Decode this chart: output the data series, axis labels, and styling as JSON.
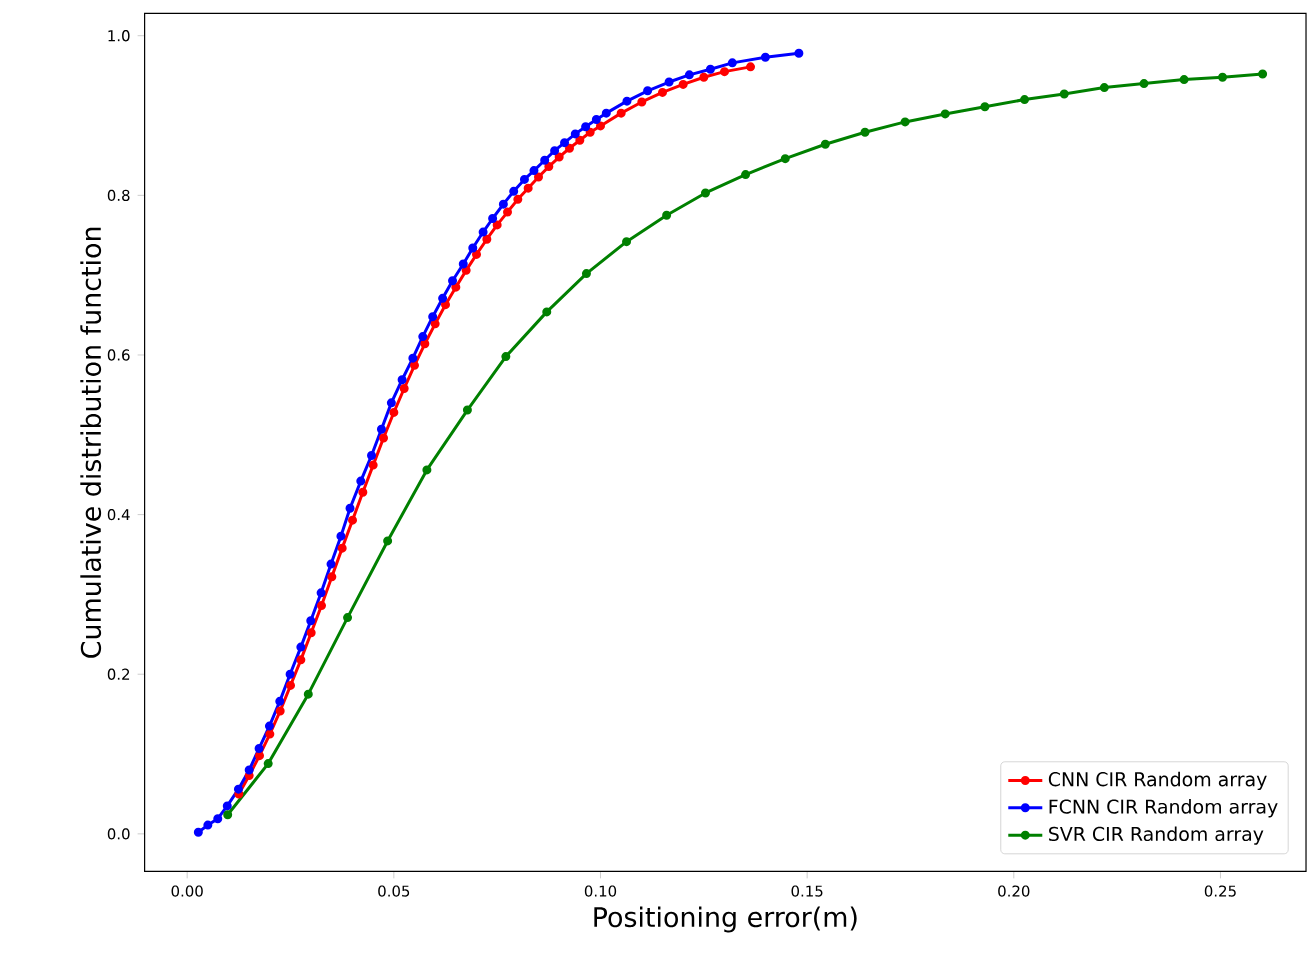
{
  "chart_data": {
    "type": "line",
    "xlabel": "Positioning error(m)",
    "ylabel": "Cumulative distribution function",
    "xlim": [
      -0.0103,
      0.2707
    ],
    "ylim": [
      -0.047,
      1.028
    ],
    "xticks": [
      {
        "value": 0,
        "label": "0.00"
      },
      {
        "value": 0.05,
        "label": "0.05"
      },
      {
        "value": 0.1,
        "label": "0.10"
      },
      {
        "value": 0.15,
        "label": "0.15"
      },
      {
        "value": 0.2,
        "label": "0.20"
      },
      {
        "value": 0.25,
        "label": "0.25"
      }
    ],
    "yticks": [
      {
        "value": 0,
        "label": "0.0"
      },
      {
        "value": 0.2,
        "label": "0.2"
      },
      {
        "value": 0.4,
        "label": "0.4"
      },
      {
        "value": 0.6,
        "label": "0.6"
      },
      {
        "value": 0.8,
        "label": "0.8"
      },
      {
        "value": 1,
        "label": "1.0"
      }
    ],
    "legend": "bottom right",
    "marker": "circle",
    "line_style": "solid",
    "grid": false,
    "series": [
      {
        "name": "CNN CIR Random array",
        "color": "#ff0000",
        "x": [
          0.0125,
          0.015,
          0.0175,
          0.02,
          0.0225,
          0.025,
          0.0275,
          0.03,
          0.0325,
          0.035,
          0.0375,
          0.04,
          0.0425,
          0.045,
          0.0475,
          0.05,
          0.0525,
          0.055,
          0.0575,
          0.06,
          0.0625,
          0.065,
          0.0675,
          0.07,
          0.0725,
          0.075,
          0.0775,
          0.08,
          0.0825,
          0.085,
          0.0875,
          0.09,
          0.0925,
          0.095,
          0.0975,
          0.1,
          0.105,
          0.11,
          0.115,
          0.12,
          0.125,
          0.13,
          0.1363
        ],
        "values": [
          0.05,
          0.073,
          0.098,
          0.125,
          0.154,
          0.186,
          0.218,
          0.252,
          0.286,
          0.322,
          0.358,
          0.393,
          0.428,
          0.462,
          0.496,
          0.528,
          0.558,
          0.587,
          0.614,
          0.639,
          0.663,
          0.685,
          0.706,
          0.726,
          0.745,
          0.763,
          0.779,
          0.795,
          0.809,
          0.823,
          0.836,
          0.848,
          0.859,
          0.869,
          0.879,
          0.887,
          0.903,
          0.917,
          0.929,
          0.939,
          0.948,
          0.955,
          0.961
        ]
      },
      {
        "name": "FCNN CIR Random array",
        "color": "#0000ff",
        "x": [
          0.0027,
          0.005,
          0.0074,
          0.0097,
          0.0124,
          0.015,
          0.0174,
          0.0199,
          0.0224,
          0.0249,
          0.0275,
          0.0299,
          0.0324,
          0.0348,
          0.0372,
          0.0394,
          0.042,
          0.0446,
          0.047,
          0.0494,
          0.052,
          0.0546,
          0.057,
          0.0594,
          0.0618,
          0.0642,
          0.0668,
          0.0691,
          0.0716,
          0.0739,
          0.0765,
          0.079,
          0.0816,
          0.0839,
          0.0865,
          0.0889,
          0.0913,
          0.0939,
          0.0964,
          0.099,
          0.1014,
          0.1064,
          0.1114,
          0.1166,
          0.1215,
          0.1266,
          0.1319,
          0.1399,
          0.148
        ],
        "values": [
          0.002,
          0.011,
          0.019,
          0.035,
          0.056,
          0.08,
          0.107,
          0.135,
          0.166,
          0.2,
          0.234,
          0.267,
          0.302,
          0.338,
          0.373,
          0.408,
          0.442,
          0.474,
          0.507,
          0.54,
          0.569,
          0.596,
          0.623,
          0.648,
          0.671,
          0.693,
          0.714,
          0.734,
          0.754,
          0.771,
          0.789,
          0.805,
          0.82,
          0.831,
          0.844,
          0.856,
          0.866,
          0.877,
          0.886,
          0.895,
          0.903,
          0.918,
          0.931,
          0.942,
          0.951,
          0.958,
          0.966,
          0.973,
          0.978
        ]
      },
      {
        "name": "SVR CIR Random array",
        "color": "#008000",
        "x": [
          0.0098,
          0.0196,
          0.0293,
          0.0388,
          0.0485,
          0.058,
          0.0678,
          0.0771,
          0.087,
          0.0966,
          0.1063,
          0.116,
          0.1254,
          0.1351,
          0.1447,
          0.1544,
          0.164,
          0.1737,
          0.1834,
          0.193,
          0.2026,
          0.2122,
          0.2219,
          0.2315,
          0.2412,
          0.2505,
          0.2602
        ],
        "values": [
          0.024,
          0.088,
          0.175,
          0.271,
          0.367,
          0.456,
          0.531,
          0.598,
          0.654,
          0.702,
          0.742,
          0.775,
          0.803,
          0.826,
          0.846,
          0.864,
          0.879,
          0.892,
          0.902,
          0.911,
          0.92,
          0.927,
          0.935,
          0.94,
          0.945,
          0.948,
          0.952
        ]
      }
    ]
  }
}
